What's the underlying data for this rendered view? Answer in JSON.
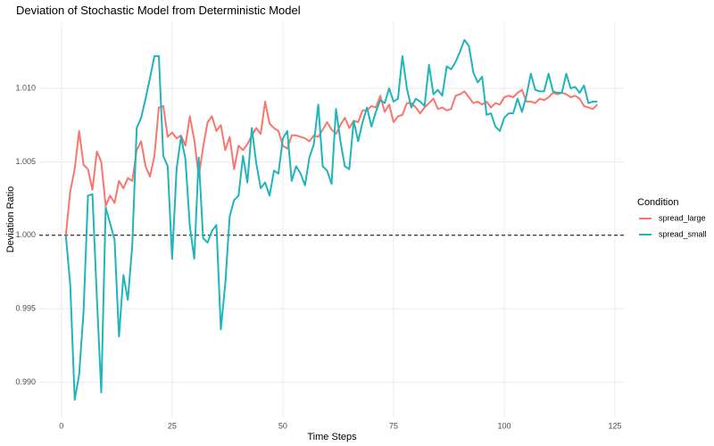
{
  "chart_data": {
    "type": "line",
    "title": "Deviation of Stochastic Model from Deterministic Model",
    "x_label": "Time Steps",
    "y_label": "Deviation Ratio",
    "legend_title": "Condition",
    "legend_position": "right",
    "grid": true,
    "hline": 1,
    "xlim": [
      -5,
      127
    ],
    "ylim": [
      0.9876,
      1.0145
    ],
    "xticks": [
      0,
      25,
      50,
      75,
      100,
      125
    ],
    "yticks": [
      {
        "value": 0.99,
        "label": "0.990"
      },
      0.995,
      {
        "value": 1,
        "label": "1.000"
      },
      1.005,
      {
        "value": 1.01,
        "label": "1.010"
      }
    ],
    "x": [
      1,
      2,
      3,
      4,
      5,
      6,
      7,
      8,
      9,
      10,
      11,
      12,
      13,
      14,
      15,
      16,
      17,
      18,
      19,
      20,
      21,
      22,
      23,
      24,
      25,
      26,
      27,
      28,
      29,
      30,
      31,
      32,
      33,
      34,
      35,
      36,
      37,
      38,
      39,
      40,
      41,
      42,
      43,
      44,
      45,
      46,
      47,
      48,
      49,
      50,
      51,
      52,
      53,
      54,
      55,
      56,
      57,
      58,
      59,
      60,
      61,
      62,
      63,
      64,
      65,
      66,
      67,
      68,
      69,
      70,
      71,
      72,
      73,
      74,
      75,
      76,
      77,
      78,
      79,
      80,
      81,
      82,
      83,
      84,
      85,
      86,
      87,
      88,
      89,
      90,
      91,
      92,
      93,
      94,
      95,
      96,
      97,
      98,
      99,
      100,
      101,
      102,
      103,
      104,
      105,
      106,
      107,
      108,
      109,
      110,
      111,
      112,
      113,
      114,
      115,
      116,
      117,
      118,
      119,
      120,
      121
    ],
    "series": [
      {
        "name": "spread_large",
        "color": "#F8766D",
        "values": [
          1.0,
          1.003,
          1.0045,
          1.0071,
          1.0048,
          1.0045,
          1.0031,
          1.0057,
          1.005,
          1.002,
          1.0027,
          1.0022,
          1.0037,
          1.0032,
          1.0039,
          1.0037,
          1.0058,
          1.0064,
          1.0047,
          1.004,
          1.0054,
          1.0087,
          1.0088,
          1.0067,
          1.007,
          1.0066,
          1.0068,
          1.0061,
          1.0081,
          1.0065,
          1.004,
          1.006,
          1.0077,
          1.0081,
          1.0071,
          1.0075,
          1.0058,
          1.0067,
          1.0045,
          1.0061,
          1.0058,
          1.0062,
          1.0068,
          1.0073,
          1.0069,
          1.0091,
          1.0076,
          1.0073,
          1.0071,
          1.0061,
          1.0059,
          1.0068,
          1.0068,
          1.0067,
          1.0066,
          1.0064,
          1.0068,
          1.0067,
          1.0072,
          1.0077,
          1.0072,
          1.0069,
          1.0075,
          1.008,
          1.0073,
          1.0078,
          1.0077,
          1.0085,
          1.0085,
          1.0088,
          1.0087,
          1.0095,
          1.0084,
          1.0089,
          1.0077,
          1.0081,
          1.0082,
          1.009,
          1.009,
          1.0087,
          1.0083,
          1.0087,
          1.009,
          1.0093,
          1.0086,
          1.0087,
          1.0085,
          1.0086,
          1.0095,
          1.0096,
          1.0098,
          1.0094,
          1.009,
          1.0091,
          1.0089,
          1.0091,
          1.0087,
          1.009,
          1.0089,
          1.0094,
          1.0095,
          1.0094,
          1.0097,
          1.0099,
          1.0091,
          1.0091,
          1.009,
          1.0093,
          1.0092,
          1.0094,
          1.0097,
          1.0096,
          1.0097,
          1.0096,
          1.0094,
          1.0095,
          1.0093,
          1.0088,
          1.0087,
          1.0086,
          1.0089
        ]
      },
      {
        "name": "spread_small",
        "color": "#1FB5BB",
        "values": [
          1.0,
          0.9966,
          0.9888,
          0.9905,
          0.9948,
          1.0027,
          1.0028,
          0.9958,
          0.9893,
          1.0019,
          1.0008,
          0.9997,
          0.9931,
          0.9973,
          0.9956,
          0.9993,
          1.0073,
          1.008,
          1.0093,
          1.0107,
          1.0122,
          1.0122,
          1.0054,
          1.0047,
          0.9984,
          1.0045,
          1.0067,
          1.0052,
          1.0006,
          0.9984,
          1.0053,
          0.9998,
          0.9995,
          1.0003,
          1.0007,
          0.9936,
          0.9967,
          1.0013,
          1.0024,
          1.0027,
          1.0054,
          1.0036,
          1.0073,
          1.0049,
          1.0032,
          1.0036,
          1.0027,
          1.0044,
          1.0042,
          1.0066,
          1.0071,
          1.0037,
          1.0047,
          1.0042,
          1.0034,
          1.0053,
          1.0062,
          1.0089,
          1.0047,
          1.0044,
          1.0035,
          1.0086,
          1.0064,
          1.0047,
          1.0045,
          1.0078,
          1.0064,
          1.0077,
          1.0087,
          1.0074,
          1.0084,
          1.0092,
          1.009,
          1.01,
          1.0091,
          1.0093,
          1.0122,
          1.01,
          1.0087,
          1.0093,
          1.0091,
          1.0088,
          1.0116,
          1.0096,
          1.0099,
          1.0095,
          1.0115,
          1.0113,
          1.0118,
          1.0125,
          1.0133,
          1.0129,
          1.0111,
          1.0104,
          1.0108,
          1.0082,
          1.0083,
          1.0074,
          1.0071,
          1.008,
          1.0083,
          1.0083,
          1.0093,
          1.0084,
          1.0095,
          1.011,
          1.0099,
          1.0098,
          1.0098,
          1.011,
          1.0098,
          1.0097,
          1.0097,
          1.011,
          1.01,
          1.0101,
          1.0097,
          1.0102,
          1.009,
          1.0091,
          1.0091
        ]
      }
    ]
  }
}
